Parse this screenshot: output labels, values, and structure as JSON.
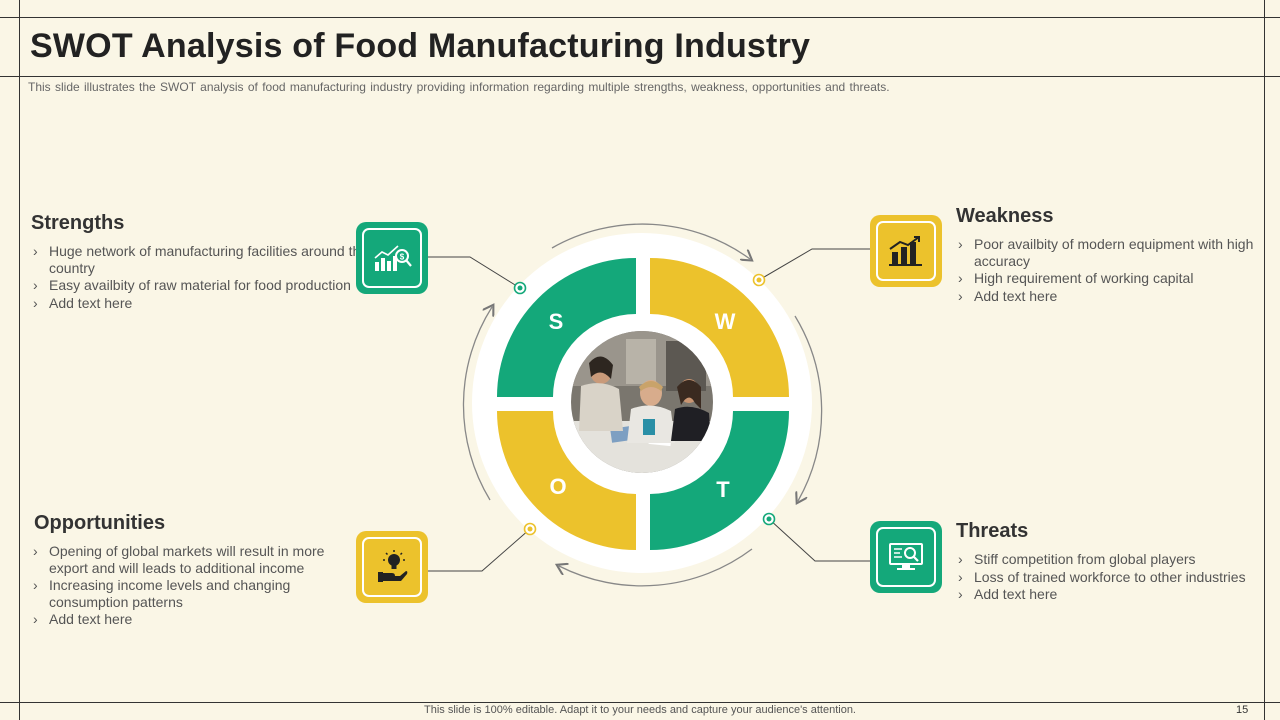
{
  "title": "SWOT Analysis of Food Manufacturing Industry",
  "subtitle": "This slide illustrates the SWOT analysis of food manufacturing industry providing information regarding multiple strengths, weakness, opportunities and threats.",
  "quadrant_letters": {
    "s": "S",
    "w": "W",
    "o": "O",
    "t": "T"
  },
  "colors": {
    "green": "#14a87a",
    "yellow": "#ecc22c",
    "background": "#faf6e6"
  },
  "strengths": {
    "heading": "Strengths",
    "icon": "chart-dollar-icon",
    "items": [
      "Huge network of manufacturing facilities around the country",
      "Easy availbity of raw material for food production",
      "Add text here"
    ]
  },
  "weakness": {
    "heading": "Weakness",
    "icon": "bar-chart-icon",
    "items": [
      "Poor availbity of modern equipment with high accuracy",
      "High  requirement of working capital",
      "Add text here"
    ]
  },
  "opportunities": {
    "heading": "Opportunities",
    "icon": "lightbulb-hand-icon",
    "items": [
      "Opening of global markets will result in more export and will  leads to additional income",
      "Increasing income levels and changing consumption patterns",
      "Add text here"
    ]
  },
  "threats": {
    "heading": "Threats",
    "icon": "monitor-search-icon",
    "items": [
      "Stiff competition from global players",
      "Loss of trained workforce to other industries",
      "Add text here"
    ]
  },
  "footer": "This slide is 100% editable. Adapt it to your needs and capture your audience's attention.",
  "page_number": "15"
}
